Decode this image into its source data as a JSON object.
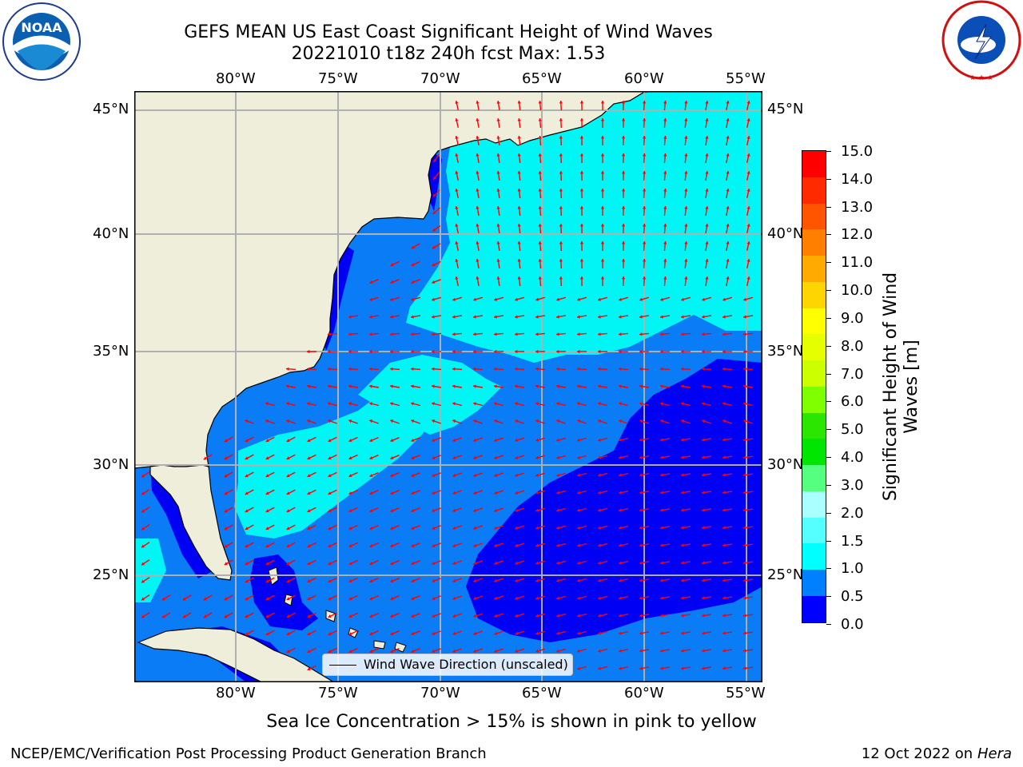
{
  "header": {
    "title_line1": "GEFS MEAN US East Coast Significant Height of Wind Waves",
    "title_line2": "20221010 t18z 240h fcst   Max: 1.53"
  },
  "logos": {
    "left": {
      "name": "NOAA",
      "text": "NOAA"
    },
    "right": {
      "name": "NATIONAL WEATHER SERVICE"
    }
  },
  "map": {
    "lon_labels": [
      "80°W",
      "75°W",
      "70°W",
      "65°W",
      "60°W",
      "55°W"
    ],
    "lat_labels": [
      "45°N",
      "40°N",
      "35°N",
      "30°N",
      "25°N"
    ],
    "colors": {
      "land": "#efeedb",
      "ocean_0_05": "#0000f5",
      "ocean_05_1": "#0a7cf6",
      "ocean_1_15": "#00f5f5",
      "arrow": "#ff0000",
      "grid": "#b0b0b0"
    },
    "legend_label": "Wind Wave Direction (unscaled)"
  },
  "colorbar": {
    "label": "Significant Height of Wind Waves [m]",
    "ticks": [
      "15.0",
      "14.0",
      "13.0",
      "12.0",
      "11.0",
      "10.0",
      "9.0",
      "8.0",
      "7.0",
      "6.0",
      "5.0",
      "4.0",
      "3.0",
      "2.0",
      "1.5",
      "1.0",
      "0.5",
      "0.0"
    ],
    "colors_top_to_bottom": [
      "#ff0000",
      "#ff2a00",
      "#ff5500",
      "#ff8000",
      "#ffaa00",
      "#ffd500",
      "#ffff00",
      "#e6ff00",
      "#ccff00",
      "#7fff00",
      "#2ae600",
      "#00e600",
      "#55ff80",
      "#aaffff",
      "#55ffff",
      "#00ffff",
      "#0080ff",
      "#0000ff"
    ]
  },
  "footer": {
    "note": "Sea Ice Concentration > 15% is shown in pink to yellow",
    "left": "NCEP/EMC/Verification Post Processing Product Generation Branch",
    "right_prefix": "12 Oct 2022 on ",
    "right_host": "Hera"
  }
}
